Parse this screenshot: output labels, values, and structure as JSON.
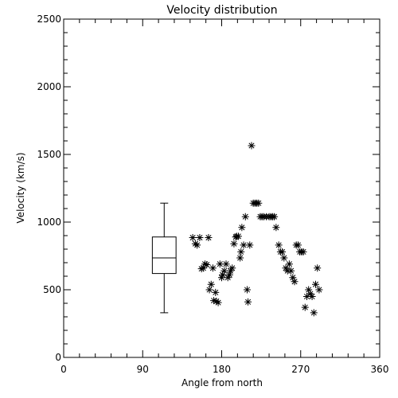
{
  "chart_data": {
    "type": "scatter",
    "title": "Velocity distribution",
    "xlabel": "Angle from north",
    "ylabel": "Velocity (km/s)",
    "xlim": [
      0,
      360
    ],
    "ylim": [
      0,
      2500
    ],
    "xticks": [
      0,
      90,
      180,
      270,
      360
    ],
    "yticks": [
      0,
      500,
      1000,
      1500,
      2000,
      2500
    ],
    "grid": false,
    "marker": "asterisk",
    "boxplot": {
      "x_range": [
        101,
        128
      ],
      "whisker_low": 330,
      "q1": 620,
      "median": 735,
      "q3": 890,
      "whisker_high": 1140
    },
    "points": [
      [
        147,
        885
      ],
      [
        150,
        840
      ],
      [
        152,
        830
      ],
      [
        155,
        885
      ],
      [
        157,
        655
      ],
      [
        159,
        660
      ],
      [
        161,
        690
      ],
      [
        163,
        685
      ],
      [
        165,
        885
      ],
      [
        166,
        500
      ],
      [
        168,
        540
      ],
      [
        170,
        660
      ],
      [
        171,
        420
      ],
      [
        173,
        480
      ],
      [
        174,
        415
      ],
      [
        176,
        405
      ],
      [
        178,
        690
      ],
      [
        180,
        590
      ],
      [
        181,
        610
      ],
      [
        183,
        640
      ],
      [
        185,
        690
      ],
      [
        187,
        590
      ],
      [
        189,
        610
      ],
      [
        190,
        640
      ],
      [
        192,
        660
      ],
      [
        194,
        840
      ],
      [
        196,
        890
      ],
      [
        197,
        895
      ],
      [
        199,
        895
      ],
      [
        201,
        735
      ],
      [
        202,
        780
      ],
      [
        203,
        960
      ],
      [
        205,
        830
      ],
      [
        207,
        1040
      ],
      [
        209,
        500
      ],
      [
        210,
        410
      ],
      [
        212,
        830
      ],
      [
        214,
        1565
      ],
      [
        216,
        1140
      ],
      [
        218,
        1140
      ],
      [
        220,
        1140
      ],
      [
        222,
        1140
      ],
      [
        224,
        1040
      ],
      [
        226,
        1040
      ],
      [
        228,
        1040
      ],
      [
        231,
        1040
      ],
      [
        234,
        1040
      ],
      [
        236,
        1040
      ],
      [
        238,
        1040
      ],
      [
        240,
        1040
      ],
      [
        242,
        960
      ],
      [
        245,
        830
      ],
      [
        247,
        780
      ],
      [
        249,
        780
      ],
      [
        251,
        735
      ],
      [
        253,
        660
      ],
      [
        255,
        640
      ],
      [
        257,
        690
      ],
      [
        259,
        640
      ],
      [
        261,
        590
      ],
      [
        263,
        560
      ],
      [
        265,
        830
      ],
      [
        267,
        830
      ],
      [
        269,
        780
      ],
      [
        271,
        780
      ],
      [
        273,
        780
      ],
      [
        275,
        370
      ],
      [
        277,
        450
      ],
      [
        279,
        500
      ],
      [
        281,
        470
      ],
      [
        283,
        450
      ],
      [
        285,
        330
      ],
      [
        287,
        540
      ],
      [
        289,
        660
      ],
      [
        291,
        500
      ]
    ]
  }
}
